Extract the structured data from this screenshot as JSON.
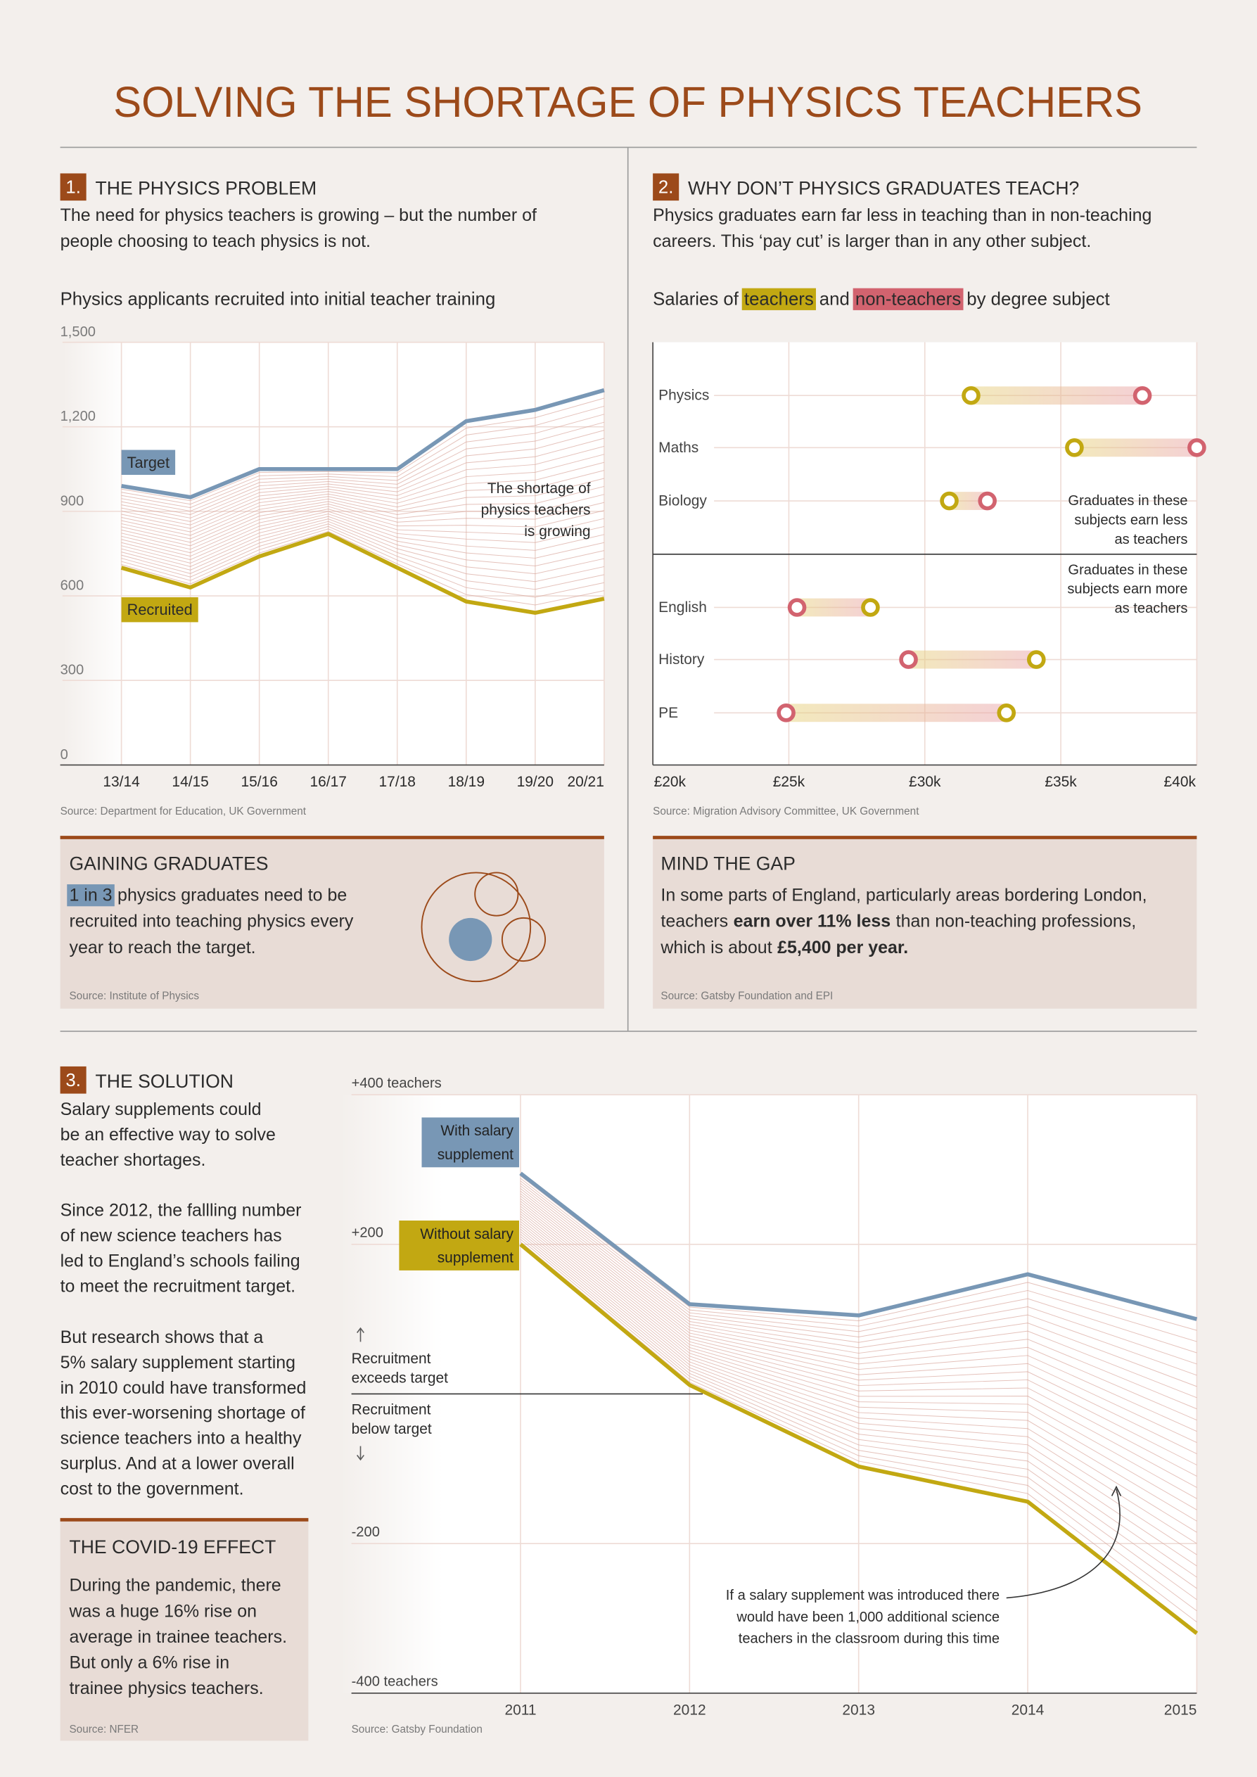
{
  "title": "SOLVING THE SHORTAGE OF PHYSICS TEACHERS",
  "sections": [
    {
      "number": "1.",
      "heading": "THE PHYSICS PROBLEM",
      "text": [
        "The need for physics teachers is growing – but the number of",
        "people choosing to teach physics is not."
      ]
    },
    {
      "number": "2.",
      "heading": "WHY DON’T PHYSICS GRADUATES TEACH?",
      "text": [
        "Physics graduates earn far less in teaching than in non-teaching",
        "careers.  This ‘pay cut’ is larger than in any other subject."
      ]
    },
    {
      "number": "3.",
      "heading": "THE SOLUTION",
      "text": [
        [
          "Salary supplements could",
          "be an effective way to solve",
          "teacher shortages."
        ],
        [
          "Since 2012, the fallling number",
          "of new science teachers has",
          "led to England’s schools failing",
          "to meet the recruitment target."
        ],
        [
          "But research shows that a",
          "5% salary supplement starting",
          "in 2010 could have transformed",
          "this ever-worsening shortage of",
          "science teachers into a healthy",
          "surplus. And at a lower overall",
          "cost to the government."
        ]
      ]
    }
  ],
  "boxes": [
    {
      "heading": "GAINING GRADUATES",
      "text": [
        [
          {
            "text": "1 in 3",
            "style": "highlight",
            "color": "#7897b5"
          },
          "physics graduates need to be"
        ],
        "recruited into teaching physics every",
        "year to reach the target."
      ],
      "source": "Source: Institute of Physics"
    },
    {
      "heading": "MIND THE GAP",
      "text": [
        "In some parts of England, particularly areas bordering London,",
        [
          "teachers",
          {
            "text": "earn over 11% less",
            "style": "bold"
          },
          "than non-teaching professions,"
        ],
        [
          "which is about",
          {
            "text": "£5,400 per year.",
            "style": "bold"
          }
        ]
      ],
      "source": "Source: Gatsby Foundation and EPI"
    },
    {
      "heading": "THE COVID-19 EFFECT",
      "text": [
        "During the pandemic, there",
        "was a huge 16% rise on",
        "average in trainee teachers.",
        "But only a 6% rise in",
        "trainee physics teachers."
      ],
      "source": "Source: NFER"
    }
  ],
  "chart_data": [
    {
      "type": "line",
      "title": "Physics applicants recruited into initial teacher training",
      "categories": [
        "13/14",
        "14/15",
        "15/16",
        "16/17",
        "17/18",
        "18/19",
        "19/20",
        "20/21"
      ],
      "series": [
        {
          "name": "Target",
          "color": "#7897b5",
          "values": [
            990,
            950,
            1050,
            1050,
            1050,
            1220,
            1260,
            1330
          ]
        },
        {
          "name": "Recruited",
          "color": "#c2a812",
          "values": [
            700,
            630,
            740,
            820,
            700,
            580,
            540,
            590
          ]
        }
      ],
      "ylim": [
        0,
        1500
      ],
      "yticks": [
        0,
        300,
        600,
        900,
        {
          "value": 1200,
          "label": "1,200"
        },
        {
          "value": 1500,
          "label": "1,500"
        }
      ],
      "grid": true,
      "annotation": [
        "The shortage of",
        "physics teachers",
        "is growing"
      ],
      "source": "Source: Department for Education, UK Government"
    },
    {
      "type": "dumbbell",
      "title_parts": [
        "Salaries of",
        "and",
        "by degree subject"
      ],
      "categories": [
        "Physics",
        "Maths",
        "Biology",
        "English",
        "History",
        "PE"
      ],
      "series": [
        {
          "name": "teachers",
          "color": "#c2a812",
          "values": [
            31700,
            35500,
            30900,
            28000,
            34100,
            33000
          ]
        },
        {
          "name": "non-teachers",
          "color": "#d2636f",
          "values": [
            38000,
            40000,
            32300,
            25300,
            29400,
            24900
          ]
        }
      ],
      "xlim": [
        20000,
        40000
      ],
      "xticks": [
        {
          "value": 20000,
          "label": "£20k"
        },
        {
          "value": 25000,
          "label": "£25k"
        },
        {
          "value": 30000,
          "label": "£30k"
        },
        {
          "value": 35000,
          "label": "£35k"
        },
        {
          "value": 40000,
          "label": "£40k"
        }
      ],
      "grid": true,
      "annotations": [
        [
          "Graduates in these",
          "subjects earn less",
          "as teachers"
        ],
        [
          "Graduates in these",
          "subjects earn more",
          "as teachers"
        ]
      ],
      "source": "Source: Migration Advisory Committee, UK Government"
    },
    {
      "type": "line",
      "x": [
        2011,
        2012,
        2013,
        2014,
        2015
      ],
      "series": [
        {
          "name": "With salary supplement",
          "color": "#7897b5",
          "values": [
            295,
            120,
            105,
            160,
            100
          ]
        },
        {
          "name": "Without salary supplement",
          "color": "#c2a812",
          "values": [
            200,
            12,
            -97,
            -144,
            -320
          ]
        }
      ],
      "xlim": [
        2010,
        2015
      ],
      "xticks": [
        2011,
        2012,
        2013,
        2014,
        2015
      ],
      "ylim": [
        -400,
        400
      ],
      "yticks": [
        {
          "value": -400,
          "label": "-400 teachers"
        },
        {
          "value": -200,
          "label": "-200"
        },
        {
          "value": 200,
          "label": "+200"
        },
        {
          "value": 400,
          "label": "+400 teachers"
        }
      ],
      "grid": true,
      "zone_labels": [
        [
          "Recruitment",
          "exceeds target"
        ],
        [
          "Recruitment",
          "below target"
        ]
      ],
      "annotation": [
        "If a salary supplement was introduced there",
        "would have been 1,000 additional science",
        "teachers in the classroom during this time"
      ],
      "source": "Source: Gatsby Foundation"
    }
  ]
}
